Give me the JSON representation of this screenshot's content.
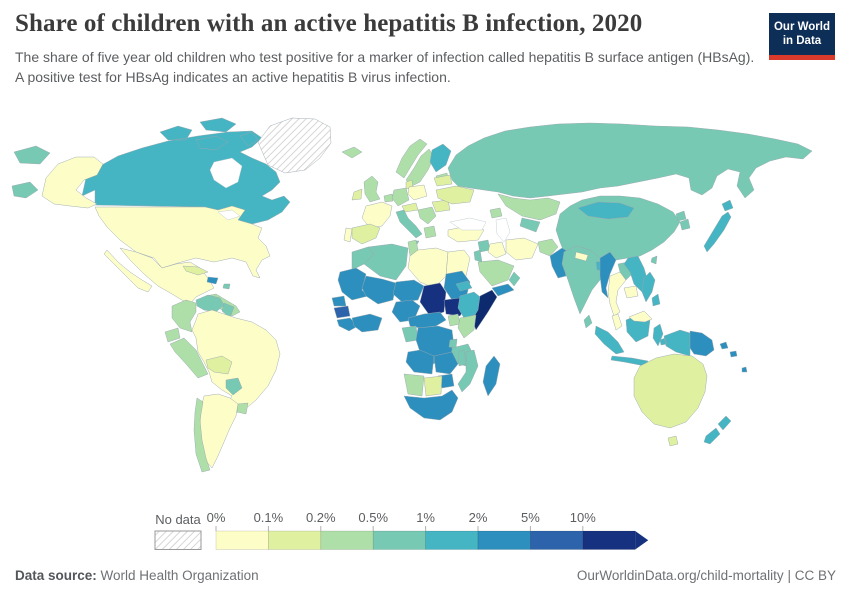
{
  "header": {
    "title": "Share of children with an active hepatitis B infection, 2020",
    "subtitle": "The share of five year old children who test positive for a marker of infection called hepatitis B surface antigen (HBsAg). A positive test for HBsAg indicates an active hepatitis B virus infection.",
    "logo": {
      "line1": "Our World",
      "line2": "in Data",
      "bg_color": "#0d2e57",
      "bar_color": "#d93a2b"
    }
  },
  "legend": {
    "no_data_label": "No data"
  },
  "footer": {
    "source_label": "Data source:",
    "source_text": "World Health Organization",
    "link_text": "OurWorldinData.org/child-mortality",
    "separator": "|",
    "license_text": "CC BY"
  },
  "chart_data": {
    "type": "choropleth_map",
    "title": "Share of children with an active hepatitis B infection",
    "year": 2020,
    "unit": "% of five-year-old children testing HBsAg positive",
    "legend_position": "bottom",
    "bins": [
      {
        "label": "0%",
        "min": 0,
        "max": 0.1,
        "color": "#fdfdc8"
      },
      {
        "label": "0.1%",
        "min": 0.1,
        "max": 0.2,
        "color": "#dff0a1"
      },
      {
        "label": "0.2%",
        "min": 0.2,
        "max": 0.5,
        "color": "#afdfa9"
      },
      {
        "label": "0.5%",
        "min": 0.5,
        "max": 1,
        "color": "#77c9b3"
      },
      {
        "label": "1%",
        "min": 1,
        "max": 2,
        "color": "#45b4c3"
      },
      {
        "label": "2%",
        "min": 2,
        "max": 5,
        "color": "#2d8fbe"
      },
      {
        "label": "5%",
        "min": 5,
        "max": 10,
        "color": "#2d63ab"
      },
      {
        "label": "10%",
        "min": 10,
        "max": null,
        "color": "#15317f"
      }
    ],
    "no_data": {
      "label": "No data",
      "pattern": "diagonal-hatch",
      "hatch_color": "#cccccc"
    },
    "regions": [
      {
        "id": "russia",
        "name": "Russia",
        "bin": 3
      },
      {
        "id": "kazakhstan",
        "name": "Kazakhstan",
        "bin": 2
      },
      {
        "id": "central-asia",
        "name": "Uzbekistan & Turkmenistan",
        "bin": 3
      },
      {
        "id": "caucasus",
        "name": "Caucasus",
        "bin": 2
      },
      {
        "id": "canada",
        "name": "Canada",
        "bin": 4
      },
      {
        "id": "greenland",
        "name": "Greenland",
        "bin": null
      },
      {
        "id": "usa",
        "name": "United States",
        "bin": 0
      },
      {
        "id": "mexico",
        "name": "Mexico",
        "bin": 0
      },
      {
        "id": "central-america",
        "name": "Central America",
        "bin": 2
      },
      {
        "id": "cuba",
        "name": "Cuba",
        "bin": 1
      },
      {
        "id": "haiti",
        "name": "Haiti & Dominican Republic",
        "bin": 5
      },
      {
        "id": "puerto-rico",
        "name": "Puerto Rico",
        "bin": 3
      },
      {
        "id": "venezuela",
        "name": "Venezuela",
        "bin": 3
      },
      {
        "id": "guyanas",
        "name": "Guyana & Suriname",
        "bin": 3
      },
      {
        "id": "colombia",
        "name": "Colombia",
        "bin": 2
      },
      {
        "id": "ecuador",
        "name": "Ecuador",
        "bin": 2
      },
      {
        "id": "peru",
        "name": "Peru",
        "bin": 2
      },
      {
        "id": "brazil",
        "name": "Brazil",
        "bin": 0
      },
      {
        "id": "bolivia",
        "name": "Bolivia",
        "bin": 1
      },
      {
        "id": "paraguay",
        "name": "Paraguay",
        "bin": 3
      },
      {
        "id": "uruguay",
        "name": "Uruguay",
        "bin": 2
      },
      {
        "id": "argentina",
        "name": "Argentina",
        "bin": 0
      },
      {
        "id": "chile",
        "name": "Chile",
        "bin": 2
      },
      {
        "id": "iceland",
        "name": "Iceland",
        "bin": 2
      },
      {
        "id": "norway",
        "name": "Norway",
        "bin": 2
      },
      {
        "id": "sweden",
        "name": "Sweden",
        "bin": 2
      },
      {
        "id": "finland",
        "name": "Finland",
        "bin": 4
      },
      {
        "id": "baltics",
        "name": "Baltic states",
        "bin": 2
      },
      {
        "id": "denmark",
        "name": "Denmark",
        "bin": 1
      },
      {
        "id": "uk",
        "name": "United Kingdom",
        "bin": 2
      },
      {
        "id": "ireland",
        "name": "Ireland",
        "bin": 1
      },
      {
        "id": "france",
        "name": "France",
        "bin": 0
      },
      {
        "id": "benelux",
        "name": "Benelux",
        "bin": 2
      },
      {
        "id": "germany",
        "name": "Germany",
        "bin": 2
      },
      {
        "id": "poland",
        "name": "Poland",
        "bin": 0
      },
      {
        "id": "czech-austria",
        "name": "Czechia & Austria",
        "bin": 1
      },
      {
        "id": "spain",
        "name": "Spain",
        "bin": 1
      },
      {
        "id": "portugal",
        "name": "Portugal",
        "bin": 0
      },
      {
        "id": "italy",
        "name": "Italy",
        "bin": 3
      },
      {
        "id": "balkans",
        "name": "Balkans",
        "bin": 2
      },
      {
        "id": "greece",
        "name": "Greece",
        "bin": 2
      },
      {
        "id": "romania",
        "name": "Romania",
        "bin": 1
      },
      {
        "id": "ukraine",
        "name": "Ukraine",
        "bin": 1
      },
      {
        "id": "belarus",
        "name": "Belarus",
        "bin": 1
      },
      {
        "id": "turkey",
        "name": "Turkey",
        "bin": 0
      },
      {
        "id": "syria",
        "name": "Syria",
        "bin": 3
      },
      {
        "id": "levant",
        "name": "Israel & Jordan",
        "bin": 3
      },
      {
        "id": "iraq",
        "name": "Iraq",
        "bin": 0
      },
      {
        "id": "iran",
        "name": "Iran",
        "bin": 0
      },
      {
        "id": "saudi-arabia",
        "name": "Saudi Arabia",
        "bin": 2
      },
      {
        "id": "yemen",
        "name": "Yemen",
        "bin": 5
      },
      {
        "id": "oman",
        "name": "Oman",
        "bin": 3
      },
      {
        "id": "morocco",
        "name": "Morocco",
        "bin": 3
      },
      {
        "id": "algeria",
        "name": "Algeria",
        "bin": 3
      },
      {
        "id": "tunisia",
        "name": "Tunisia",
        "bin": 2
      },
      {
        "id": "libya",
        "name": "Libya",
        "bin": 0
      },
      {
        "id": "egypt",
        "name": "Egypt",
        "bin": 0
      },
      {
        "id": "mauritania",
        "name": "Mauritania",
        "bin": 5
      },
      {
        "id": "mali",
        "name": "Mali & Burkina Faso",
        "bin": 5
      },
      {
        "id": "niger",
        "name": "Niger",
        "bin": 5
      },
      {
        "id": "chad",
        "name": "Chad",
        "bin": 7
      },
      {
        "id": "sudan",
        "name": "Sudan",
        "bin": 5
      },
      {
        "id": "eritrea",
        "name": "Eritrea",
        "bin": 4
      },
      {
        "id": "south-sudan",
        "name": "South Sudan",
        "bin": 7
      },
      {
        "id": "ethiopia",
        "name": "Ethiopia",
        "bin": 4
      },
      {
        "id": "somalia",
        "name": "Somalia",
        "bin": 7,
        "color_override": "#0d2a6f"
      },
      {
        "id": "senegal",
        "name": "Senegal",
        "bin": 5
      },
      {
        "id": "guinea",
        "name": "Guinea",
        "bin": 6
      },
      {
        "id": "sierra-leone-liberia",
        "name": "Sierra Leone & Liberia",
        "bin": 5
      },
      {
        "id": "cote-divoire-ghana",
        "name": "Côte d'Ivoire & Ghana",
        "bin": 5
      },
      {
        "id": "nigeria",
        "name": "Nigeria",
        "bin": 5
      },
      {
        "id": "cameroon-car",
        "name": "Cameroon & Central African Republic",
        "bin": 5
      },
      {
        "id": "gabon-congo",
        "name": "Gabon & Congo",
        "bin": 3
      },
      {
        "id": "drc",
        "name": "Democratic Republic of Congo",
        "bin": 5
      },
      {
        "id": "uganda",
        "name": "Uganda",
        "bin": 2
      },
      {
        "id": "kenya",
        "name": "Kenya",
        "bin": 2
      },
      {
        "id": "rwanda-burundi",
        "name": "Rwanda & Burundi",
        "bin": 3
      },
      {
        "id": "tanzania",
        "name": "Tanzania",
        "bin": 3
      },
      {
        "id": "angola",
        "name": "Angola",
        "bin": 5
      },
      {
        "id": "zambia",
        "name": "Zambia",
        "bin": 5
      },
      {
        "id": "malawi",
        "name": "Malawi",
        "bin": 3
      },
      {
        "id": "mozambique",
        "name": "Mozambique",
        "bin": 3
      },
      {
        "id": "zimbabwe",
        "name": "Zimbabwe",
        "bin": 5
      },
      {
        "id": "namibia",
        "name": "Namibia",
        "bin": 2
      },
      {
        "id": "botswana",
        "name": "Botswana",
        "bin": 1
      },
      {
        "id": "south-africa",
        "name": "South Africa",
        "bin": 5
      },
      {
        "id": "madagascar",
        "name": "Madagascar",
        "bin": 5
      },
      {
        "id": "china",
        "name": "China",
        "bin": 3
      },
      {
        "id": "mongolia",
        "name": "Mongolia",
        "bin": 4
      },
      {
        "id": "north-korea",
        "name": "North Korea",
        "bin": 3
      },
      {
        "id": "south-korea",
        "name": "South Korea",
        "bin": 3
      },
      {
        "id": "japan",
        "name": "Japan",
        "bin": 4
      },
      {
        "id": "taiwan",
        "name": "Taiwan",
        "bin": 3
      },
      {
        "id": "afghanistan",
        "name": "Afghanistan",
        "bin": 2
      },
      {
        "id": "pakistan",
        "name": "Pakistan",
        "bin": 5
      },
      {
        "id": "india",
        "name": "India",
        "bin": 3
      },
      {
        "id": "nepal",
        "name": "Nepal",
        "bin": 0
      },
      {
        "id": "bangladesh",
        "name": "Bangladesh",
        "bin": 4
      },
      {
        "id": "sri-lanka",
        "name": "Sri Lanka",
        "bin": 3
      },
      {
        "id": "myanmar",
        "name": "Myanmar",
        "bin": 5
      },
      {
        "id": "thailand",
        "name": "Thailand",
        "bin": 0
      },
      {
        "id": "laos",
        "name": "Laos",
        "bin": 3
      },
      {
        "id": "vietnam",
        "name": "Vietnam",
        "bin": 4
      },
      {
        "id": "cambodia",
        "name": "Cambodia",
        "bin": 0
      },
      {
        "id": "indonesia",
        "name": "Indonesia",
        "bin": 4
      },
      {
        "id": "malaysia",
        "name": "Malaysia",
        "bin": 0
      },
      {
        "id": "philippines",
        "name": "Philippines",
        "bin": 4
      },
      {
        "id": "papua-new-guinea",
        "name": "Papua New Guinea",
        "bin": 5
      },
      {
        "id": "solomon-islands",
        "name": "Solomon Islands",
        "bin": 5
      },
      {
        "id": "vanuatu-fiji",
        "name": "Vanuatu & Fiji",
        "bin": 5
      },
      {
        "id": "australia",
        "name": "Australia",
        "bin": 1
      },
      {
        "id": "new-zealand",
        "name": "New Zealand",
        "bin": 4
      }
    ]
  }
}
